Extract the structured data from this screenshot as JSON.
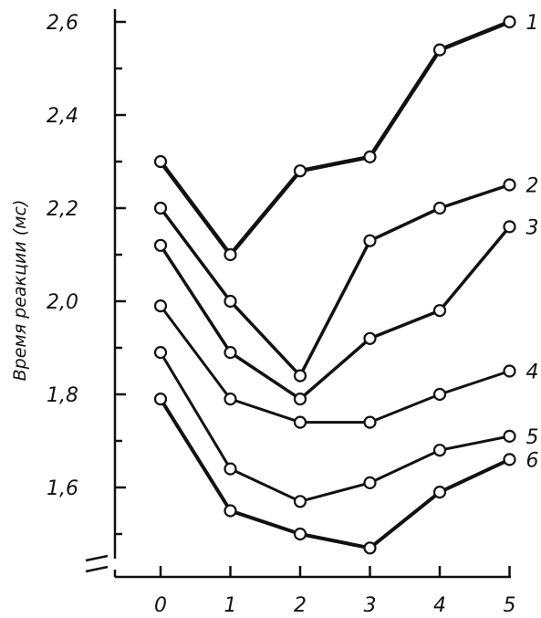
{
  "chart_data": {
    "type": "line",
    "title": "",
    "xlabel": "",
    "ylabel": "Время реакции (мс)",
    "x": [
      0,
      1,
      2,
      3,
      4,
      5
    ],
    "x_tick_labels": [
      "0",
      "1",
      "2",
      "3",
      "4",
      "5"
    ],
    "y_tick_labels": [
      "1,6",
      "1,8",
      "2,0",
      "2,2",
      "2,4",
      "2,6"
    ],
    "y_ticks": [
      1.6,
      1.8,
      2.0,
      2.2,
      2.4,
      2.6
    ],
    "ylim": [
      1.42,
      2.6
    ],
    "y_axis_break": true,
    "grid": false,
    "legend": "none; series numbered at right end of lines",
    "series": [
      {
        "name": "1",
        "values": [
          2.3,
          2.1,
          2.28,
          2.31,
          2.54,
          2.6
        ]
      },
      {
        "name": "2",
        "values": [
          2.2,
          2.0,
          1.84,
          2.13,
          2.2,
          2.25
        ]
      },
      {
        "name": "3",
        "values": [
          2.12,
          1.89,
          1.79,
          1.92,
          1.98,
          2.16
        ]
      },
      {
        "name": "4",
        "values": [
          1.99,
          1.79,
          1.74,
          1.74,
          1.8,
          1.85
        ]
      },
      {
        "name": "5",
        "values": [
          1.89,
          1.64,
          1.57,
          1.61,
          1.68,
          1.71
        ]
      },
      {
        "name": "6",
        "values": [
          1.79,
          1.55,
          1.5,
          1.47,
          1.59,
          1.66
        ]
      }
    ]
  }
}
